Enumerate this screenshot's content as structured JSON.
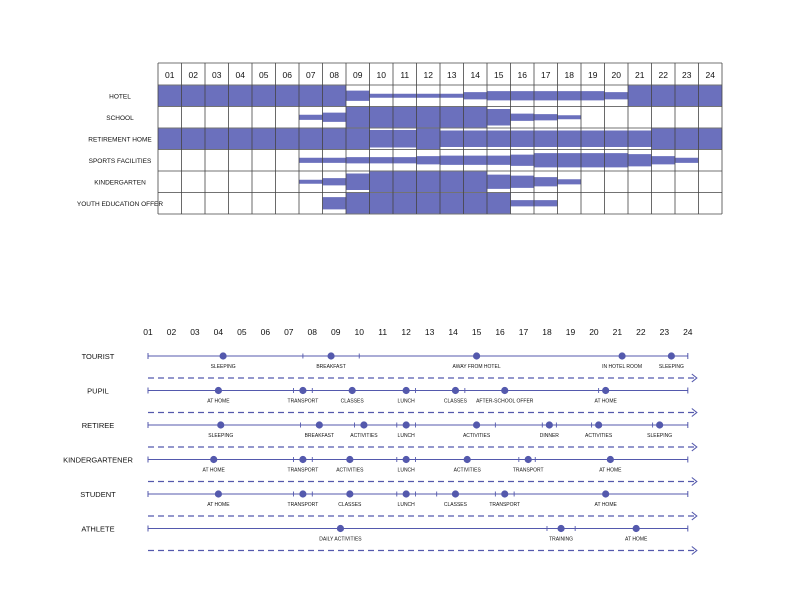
{
  "colors": {
    "fill": "#6b70bd",
    "line": "#5459ad",
    "highlight": "#4b58c8",
    "grid": "#444444"
  },
  "top_chart": {
    "hours": [
      "01",
      "02",
      "03",
      "04",
      "05",
      "06",
      "07",
      "08",
      "09",
      "10",
      "11",
      "12",
      "13",
      "14",
      "15",
      "16",
      "17",
      "18",
      "19",
      "20",
      "21",
      "22",
      "23",
      "24"
    ],
    "rows": [
      {
        "label": "HOTEL",
        "levels": [
          1,
          1,
          1,
          1,
          1,
          1,
          1,
          1,
          0.5,
          0.2,
          0.2,
          0.2,
          0.2,
          0.35,
          0.45,
          0.45,
          0.45,
          0.45,
          0.45,
          0.35,
          1,
          1,
          1,
          1
        ]
      },
      {
        "label": "SCHOOL",
        "levels": [
          0,
          0,
          0,
          0,
          0,
          0,
          0.25,
          0.45,
          1,
          1,
          1,
          1,
          1,
          1,
          0.8,
          0.35,
          0.3,
          0.2,
          0,
          0,
          0,
          0,
          0,
          0
        ]
      },
      {
        "label": "RETIREMENT HOME",
        "levels": [
          1,
          1,
          1,
          1,
          1,
          1,
          1,
          1,
          1,
          0.85,
          0.85,
          1,
          0.8,
          0.8,
          0.8,
          0.8,
          0.8,
          0.8,
          0.8,
          0.8,
          0.8,
          1,
          1,
          1
        ]
      },
      {
        "label": "SPORTS FACILITIES",
        "levels": [
          0,
          0,
          0,
          0,
          0,
          0,
          0.25,
          0.25,
          0.3,
          0.3,
          0.3,
          0.4,
          0.45,
          0.45,
          0.45,
          0.55,
          0.7,
          0.7,
          0.7,
          0.7,
          0.6,
          0.4,
          0.25,
          0
        ]
      },
      {
        "label": "KINDERGARTEN",
        "levels": [
          0,
          0,
          0,
          0,
          0,
          0,
          0.2,
          0.35,
          0.8,
          1,
          1,
          1,
          1,
          1,
          0.7,
          0.6,
          0.45,
          0.25,
          0,
          0,
          0,
          0,
          0,
          0
        ]
      },
      {
        "label": "YOUTH EDUCATION OFFER",
        "levels": [
          0,
          0,
          0,
          0,
          0,
          0,
          0,
          0.6,
          1,
          1,
          1,
          1,
          1,
          1,
          1,
          0.3,
          0.3,
          0,
          0,
          0,
          0,
          0,
          0,
          0
        ]
      }
    ]
  },
  "timeline": {
    "hours": [
      "01",
      "02",
      "03",
      "04",
      "05",
      "06",
      "07",
      "08",
      "09",
      "10",
      "11",
      "12",
      "13",
      "14",
      "15",
      "16",
      "17",
      "18",
      "19",
      "20",
      "21",
      "22",
      "23",
      "24"
    ],
    "rows": [
      {
        "label": "TOURIST",
        "highlight": false,
        "ticks": [
          7.6,
          10
        ],
        "events": [
          {
            "h": 4.2,
            "label": "SLEEPING"
          },
          {
            "h": 8.8,
            "label": "BREAKFAST"
          },
          {
            "h": 15.0,
            "label": "AWAY FROM HOTEL"
          },
          {
            "h": 21.2,
            "label": "IN HOTEL ROOM"
          },
          {
            "h": 23.3,
            "label": "SLEEPING"
          }
        ]
      },
      {
        "label": "PUPIL",
        "highlight": false,
        "ticks": [
          7.2,
          8,
          12.4,
          14.5,
          20.2
        ],
        "events": [
          {
            "h": 4.0,
            "label": "AT HOME"
          },
          {
            "h": 7.6,
            "label": "TRANSPORT"
          },
          {
            "h": 9.7,
            "label": "CLASSES"
          },
          {
            "h": 12.0,
            "label": "LUNCH"
          },
          {
            "h": 14.1,
            "label": "CLASSES"
          },
          {
            "h": 16.2,
            "label": "AFTER-SCHOOL OFFER"
          },
          {
            "h": 20.5,
            "label": "AT HOME"
          }
        ]
      },
      {
        "label": "RETIREE",
        "highlight": false,
        "ticks": [
          7.5,
          9.8,
          11.6,
          12.4,
          15.8,
          17.8,
          18.4,
          19.9,
          22.5
        ],
        "events": [
          {
            "h": 4.1,
            "label": "SLEEPING"
          },
          {
            "h": 8.3,
            "label": "BREAKFAST"
          },
          {
            "h": 10.2,
            "label": "ACTIVITIES"
          },
          {
            "h": 12.0,
            "label": "LUNCH"
          },
          {
            "h": 15.0,
            "label": "ACTIVITIES"
          },
          {
            "h": 18.1,
            "label": "DINNER"
          },
          {
            "h": 20.2,
            "label": "ACTIVITIES"
          },
          {
            "h": 22.8,
            "label": "SLEEPING"
          }
        ]
      },
      {
        "label": "KINDERGARTENER",
        "highlight": true,
        "ticks": [
          7.2,
          8,
          11.6,
          12.4,
          16.8,
          17.5
        ],
        "events": [
          {
            "h": 3.8,
            "label": "AT HOME"
          },
          {
            "h": 7.6,
            "label": "TRANSPORT"
          },
          {
            "h": 9.6,
            "label": "ACTIVITIES"
          },
          {
            "h": 12.0,
            "label": "LUNCH"
          },
          {
            "h": 14.6,
            "label": "ACTIVITIES"
          },
          {
            "h": 17.2,
            "label": "TRANSPORT"
          },
          {
            "h": 20.7,
            "label": "AT HOME"
          }
        ]
      },
      {
        "label": "STUDENT",
        "highlight": false,
        "ticks": [
          7.2,
          8,
          11.6,
          12.4,
          13.3,
          15.8,
          16.6
        ],
        "events": [
          {
            "h": 4.0,
            "label": "AT HOME"
          },
          {
            "h": 7.6,
            "label": "TRANSPORT"
          },
          {
            "h": 9.6,
            "label": "CLASSES"
          },
          {
            "h": 12.0,
            "label": "LUNCH"
          },
          {
            "h": 14.1,
            "label": "CLASSES"
          },
          {
            "h": 16.2,
            "label": "TRANSPORT"
          },
          {
            "h": 20.5,
            "label": "AT HOME"
          }
        ]
      },
      {
        "label": "ATHLETE",
        "highlight": false,
        "ticks": [
          18.0,
          19.2
        ],
        "events": [
          {
            "h": 9.2,
            "label": "DAILY ACTIVITIES"
          },
          {
            "h": 18.6,
            "label": "TRAINING"
          },
          {
            "h": 21.8,
            "label": "AT HOME"
          }
        ]
      }
    ]
  }
}
